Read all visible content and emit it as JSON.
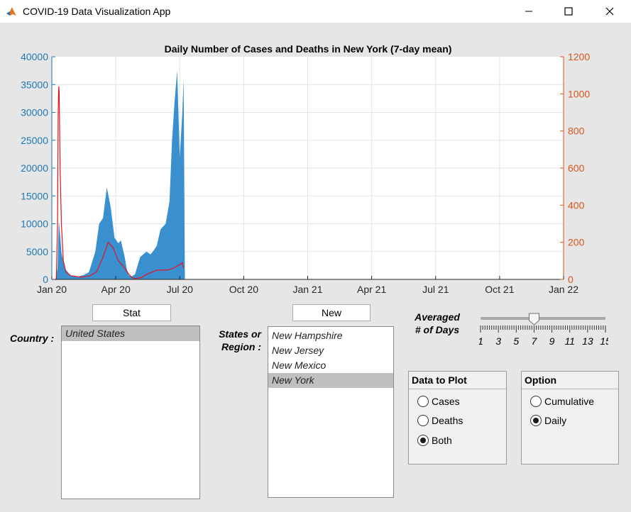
{
  "window": {
    "title": "COVID-19 Data Visualization App"
  },
  "chart_data": {
    "type": "area",
    "title": "Daily Number of Cases and Deaths in New York (7-day mean)",
    "x_ticks": [
      "Jan 20",
      "Apr 20",
      "Jul 20",
      "Oct 20",
      "Jan 21",
      "Apr 21",
      "Jul 21",
      "Oct 21",
      "Jan 22"
    ],
    "ylim_left": [
      0,
      40000
    ],
    "ylim_right": [
      0,
      1200
    ],
    "y_ticks_left": [
      "0",
      "5000",
      "10000",
      "15000",
      "20000",
      "25000",
      "30000",
      "35000",
      "40000"
    ],
    "y_ticks_right": [
      "0",
      "200",
      "400",
      "600",
      "800",
      "1000",
      "1200"
    ],
    "grid": true,
    "colors": {
      "cases": "#3a8fcf",
      "deaths": "#e3141e",
      "left_axis": "#1f77b4",
      "right_axis": "#d9541a"
    },
    "series": [
      {
        "kind": "area",
        "axis": "left",
        "x": [
          0,
          0.06,
          0.09,
          0.1,
          0.11,
          0.13,
          0.15,
          0.2,
          0.3,
          0.4,
          0.5,
          0.58,
          0.68,
          0.74,
          0.8,
          0.86,
          0.92,
          0.98,
          1.04,
          1.08,
          1.14,
          1.17,
          1.2,
          1.24,
          1.3,
          1.38,
          1.48,
          1.54,
          1.58,
          1.64,
          1.7,
          1.78,
          1.84,
          1.88,
          1.92,
          1.96,
          2.0,
          2.04,
          2.06,
          2.08
        ],
        "y": [
          0,
          0,
          2000,
          7000,
          10500,
          8000,
          5000,
          2000,
          600,
          500,
          800,
          1300,
          5000,
          10000,
          11000,
          16500,
          13000,
          7500,
          6500,
          7000,
          4000,
          2000,
          800,
          500,
          900,
          4000,
          5000,
          4500,
          5000,
          6000,
          9000,
          10000,
          14000,
          25000,
          32000,
          37500,
          22000,
          30000,
          36000,
          0
        ]
      },
      {
        "kind": "line",
        "axis": "right",
        "x": [
          0,
          0.07,
          0.09,
          0.1,
          0.105,
          0.11,
          0.115,
          0.13,
          0.15,
          0.18,
          0.22,
          0.3,
          0.45,
          0.6,
          0.7,
          0.8,
          0.88,
          0.96,
          1.04,
          1.12,
          1.2,
          1.25,
          1.3,
          1.4,
          1.5,
          1.65,
          1.8,
          1.9,
          1.95,
          2.0,
          2.04,
          2.06
        ],
        "y": [
          0,
          0,
          300,
          900,
          1010,
          1040,
          1000,
          600,
          300,
          100,
          40,
          20,
          12,
          20,
          40,
          120,
          200,
          170,
          100,
          70,
          30,
          10,
          5,
          10,
          30,
          50,
          50,
          60,
          70,
          80,
          90,
          60
        ]
      }
    ]
  },
  "controls": {
    "stat_button": "Stat",
    "new_button": "New",
    "country_label": "Country :",
    "states_label": [
      "States or",
      "Region :"
    ],
    "countries": [
      "United States"
    ],
    "countries_selected": 0,
    "states": [
      "New Hampshire",
      "New Jersey",
      "New Mexico",
      "New York"
    ],
    "states_selected": 3,
    "slider_label": [
      "Averaged",
      "# of Days"
    ],
    "slider_ticks": [
      "1",
      "3",
      "5",
      "7",
      "9",
      "11",
      "13",
      "15"
    ],
    "slider_value": 7,
    "data_panel": {
      "title": "Data to Plot",
      "options": [
        "Cases",
        "Deaths",
        "Both"
      ],
      "selected": 2
    },
    "option_panel": {
      "title": "Option",
      "options": [
        "Cumulative",
        "Daily"
      ],
      "selected": 1
    }
  }
}
